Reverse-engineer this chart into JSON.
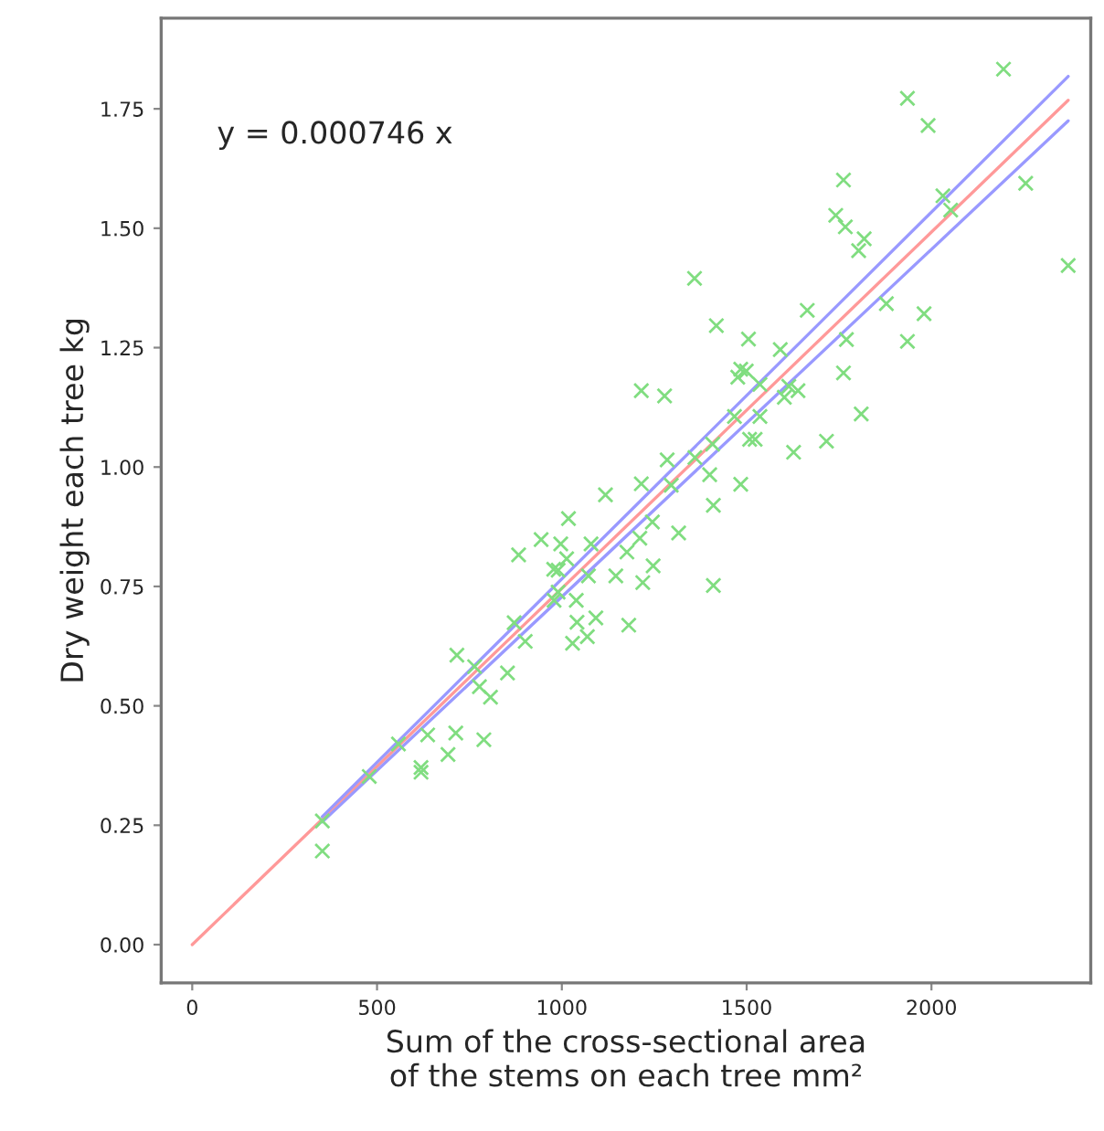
{
  "chart_data": {
    "type": "scatter",
    "xlabel": "Sum of the cross-sectional area\nof the stems on each tree mm²",
    "ylabel": "Dry weight each tree kg",
    "annotations": [
      "y = 0.000746 x"
    ],
    "xlim": [
      -84,
      2431
    ],
    "ylim": [
      -0.08,
      1.94
    ],
    "xticks": [
      0,
      500,
      1000,
      1500,
      2000
    ],
    "yticks": [
      {
        "value": 0,
        "label": "0.00"
      },
      {
        "value": 0.25,
        "label": "0.25"
      },
      {
        "value": 0.5,
        "label": "0.50"
      },
      {
        "value": 0.75,
        "label": "0.75"
      },
      {
        "value": 1,
        "label": "1.00"
      },
      {
        "value": 1.25,
        "label": "1.25"
      },
      {
        "value": 1.5,
        "label": "1.50"
      },
      {
        "value": 1.75,
        "label": "1.75"
      }
    ],
    "grid": false,
    "marker": "cross",
    "series": [
      {
        "color": "#80dd80",
        "x": [
          2195,
          1935,
          1991,
          1762,
          2255,
          2031,
          2052,
          1741,
          1767,
          1818,
          1803,
          2370,
          1359,
          1878,
          1664,
          1980,
          1418,
          1505,
          1770,
          1935,
          1591,
          1484,
          1499,
          1476,
          1762,
          1536,
          1215,
          1278,
          1614,
          1639,
          1602,
          1467,
          1536,
          1810,
          1508,
          1523,
          1716,
          1627,
          1408,
          1285,
          1360,
          1215,
          1400,
          1484,
          1410,
          1296,
          1118,
          1018,
          944,
          997,
          1079,
          883,
          1013,
          1176,
          978,
          990,
          1072,
          1146,
          990,
          1039,
          979,
          871,
          1041,
          1092,
          1181,
          901,
          1029,
          1069,
          716,
          764,
          853,
          777,
          807,
          558,
          637,
          713,
          692,
          789,
          619,
          619,
          479,
          352,
          352,
          1245,
          1316,
          1211,
          1247,
          1219,
          1410
        ],
        "values": [
          1.833,
          1.772,
          1.715,
          1.601,
          1.594,
          1.568,
          1.538,
          1.527,
          1.503,
          1.478,
          1.453,
          1.422,
          1.395,
          1.342,
          1.328,
          1.321,
          1.296,
          1.268,
          1.267,
          1.263,
          1.246,
          1.205,
          1.201,
          1.188,
          1.197,
          1.173,
          1.16,
          1.149,
          1.169,
          1.16,
          1.146,
          1.106,
          1.106,
          1.111,
          1.058,
          1.058,
          1.054,
          1.031,
          1.048,
          1.015,
          1.02,
          0.965,
          0.984,
          0.964,
          0.92,
          0.962,
          0.942,
          0.892,
          0.848,
          0.839,
          0.839,
          0.816,
          0.808,
          0.822,
          0.786,
          0.784,
          0.772,
          0.772,
          0.738,
          0.721,
          0.721,
          0.674,
          0.675,
          0.684,
          0.669,
          0.635,
          0.631,
          0.645,
          0.606,
          0.582,
          0.569,
          0.54,
          0.518,
          0.42,
          0.439,
          0.443,
          0.398,
          0.429,
          0.371,
          0.361,
          0.352,
          0.259,
          0.196,
          0.885,
          0.862,
          0.851,
          0.793,
          0.758,
          0.752
        ]
      },
      {
        "type": "line",
        "color": "#ff9999",
        "marker": "none",
        "x": [
          0,
          2370
        ],
        "values": [
          0,
          1.768
        ]
      },
      {
        "type": "line",
        "color": "#9999ff",
        "marker": "none",
        "x": [
          352,
          2370
        ],
        "values": [
          0.268,
          1.818
        ]
      },
      {
        "type": "line",
        "color": "#9999ff",
        "marker": "none",
        "x": [
          352,
          2370
        ],
        "values": [
          0.257,
          1.725
        ]
      }
    ]
  }
}
